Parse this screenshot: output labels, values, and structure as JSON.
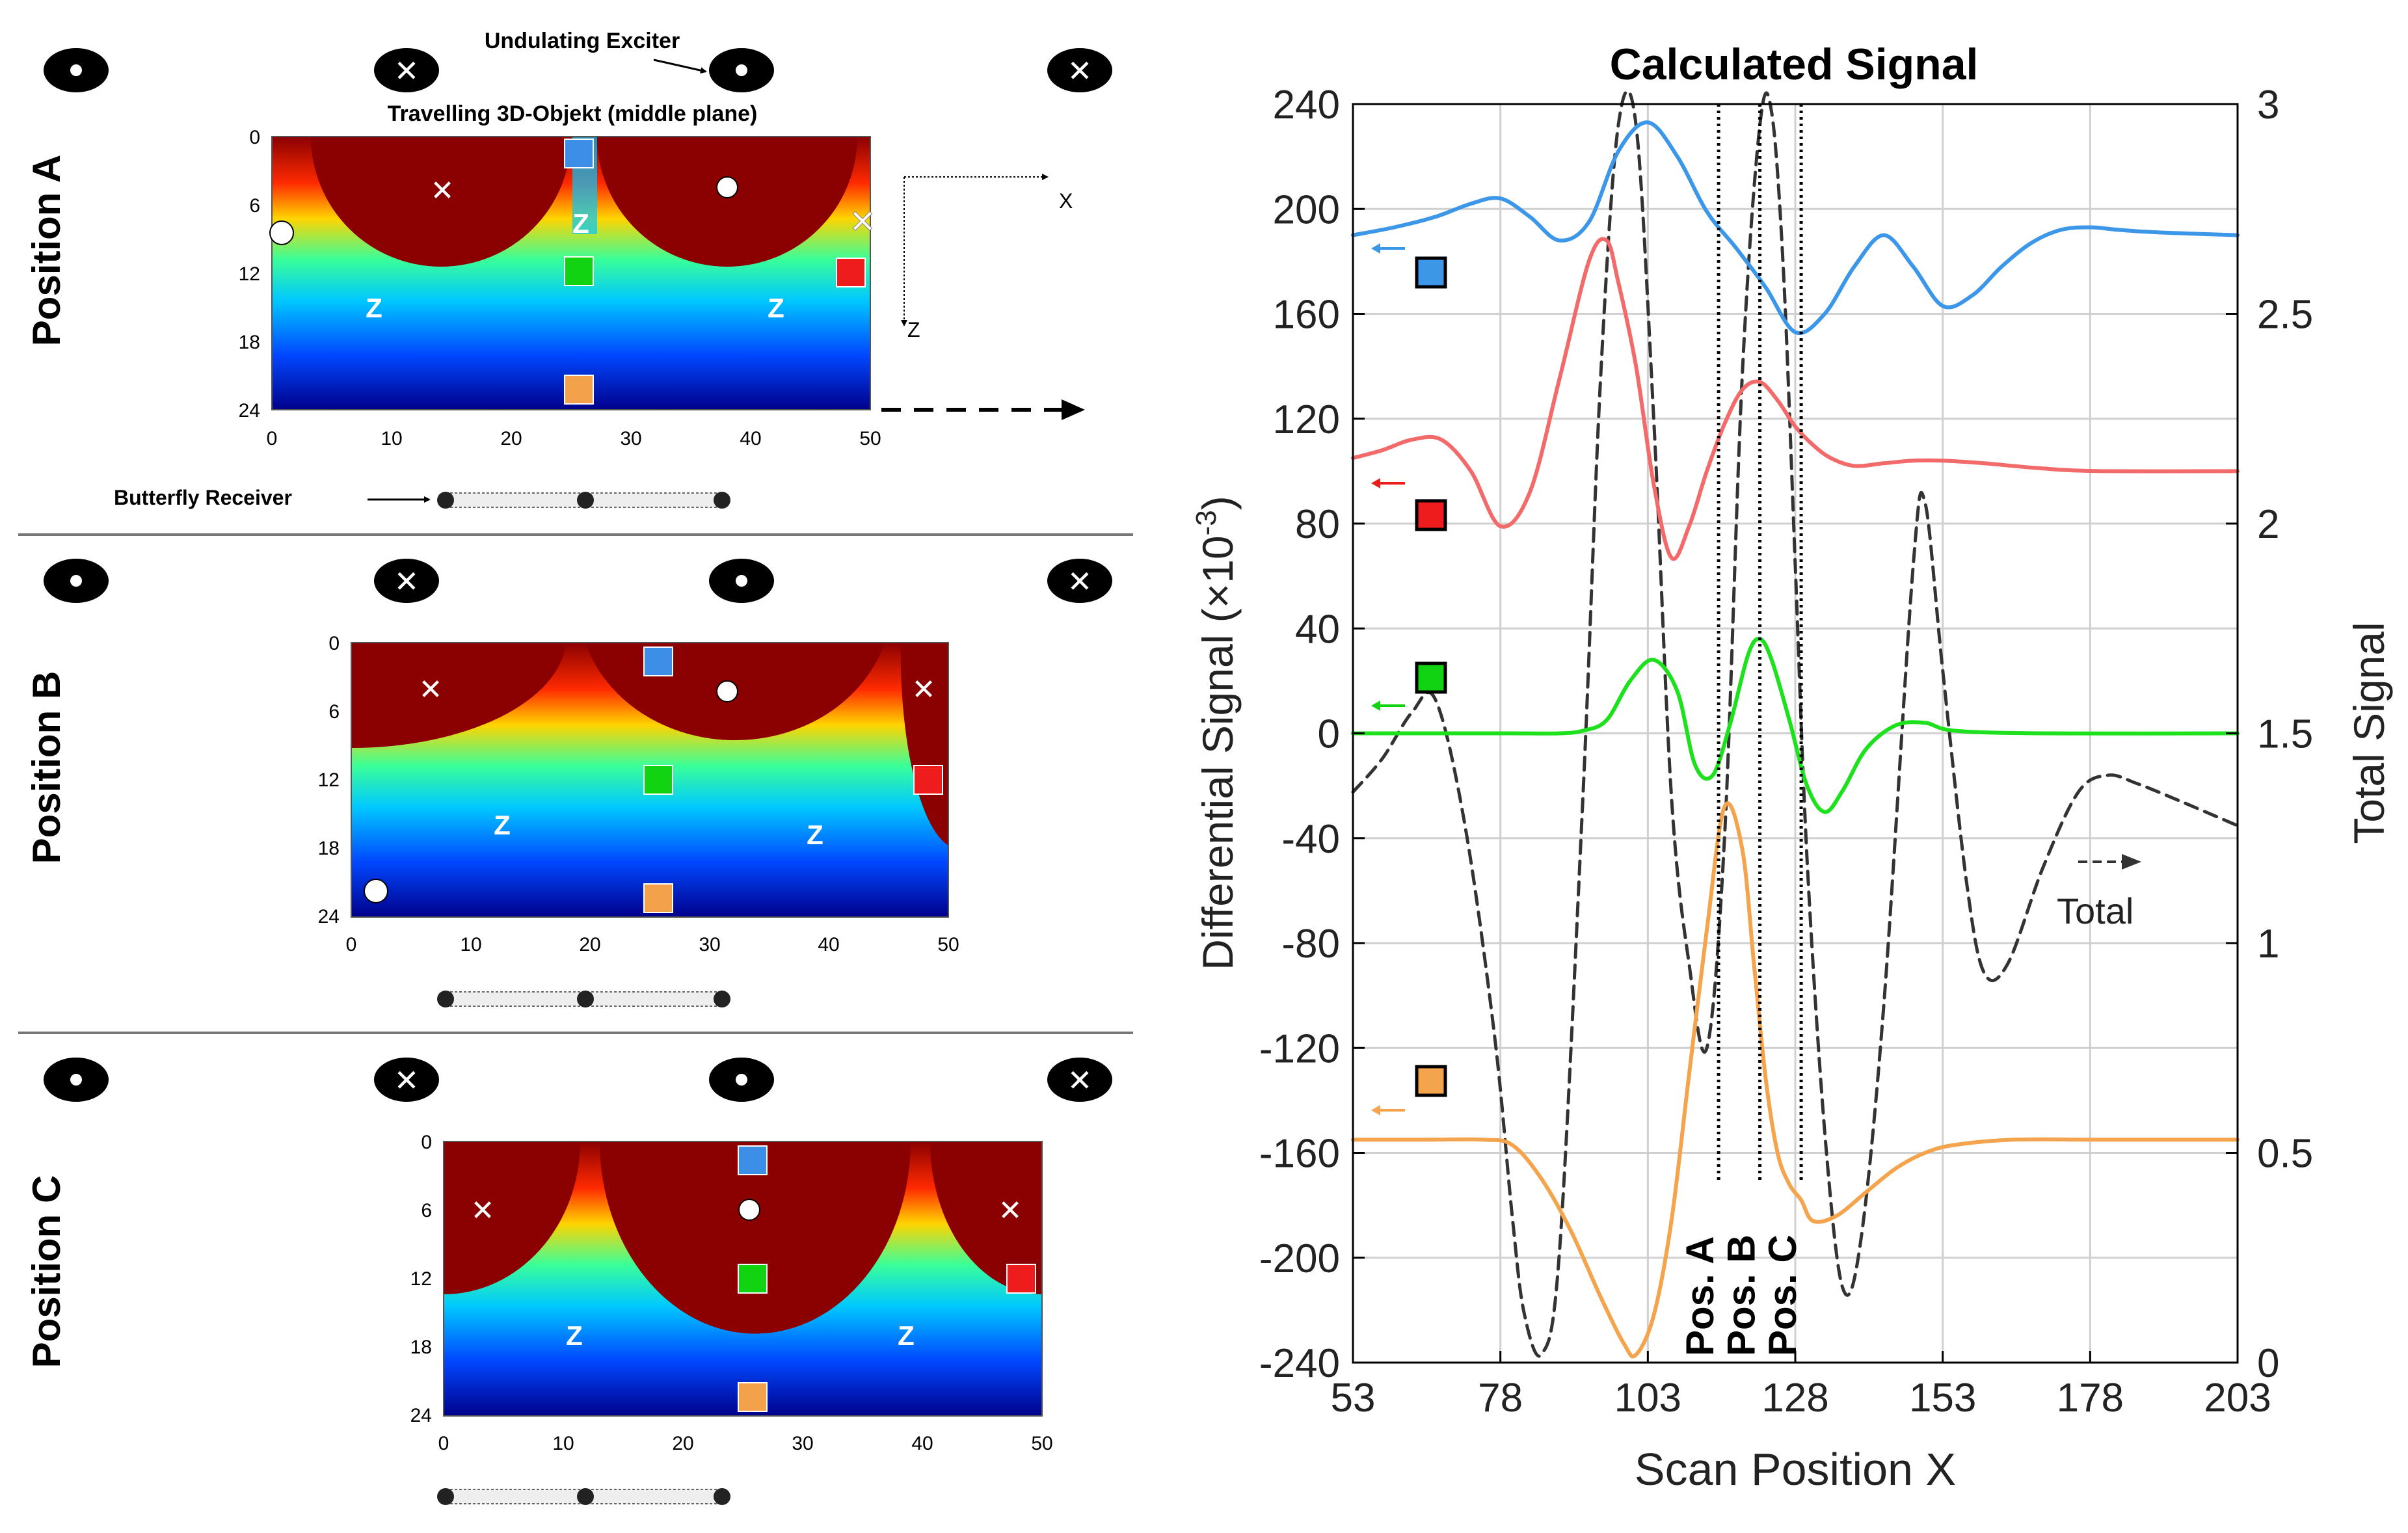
{
  "left_panel": {
    "exciter_label": "Undulating Exciter",
    "object_label": "Travelling 3D-Objekt (middle plane)",
    "receiver_label": "Butterfly Receiver",
    "axis_x_label": "X",
    "axis_z_label": "Z",
    "zone_label": "Z",
    "x_ticks": [
      "0",
      "10",
      "20",
      "30",
      "40",
      "50"
    ],
    "z_ticks": [
      "0",
      "6",
      "12",
      "18",
      "24"
    ],
    "colormap": [
      "#8b0000",
      "#ff2a00",
      "#ffd400",
      "#39ff9a",
      "#00c8ff",
      "#0047ff",
      "#00008b"
    ],
    "marker_colors": {
      "blue": "#3d8ee6",
      "green": "#12d312",
      "red": "#ee1c1c",
      "orange": "#f4a14b"
    },
    "panels": [
      {
        "label": "Position A"
      },
      {
        "label": "Position B"
      },
      {
        "label": "Position C"
      }
    ]
  },
  "chart_data": {
    "type": "line",
    "title": "Calculated Signal",
    "xlabel": "Scan Position X",
    "ylabel_left": "Differential Signal (×10",
    "ylabel_left_exp": "-3",
    "ylabel_left_close": ")",
    "ylabel_right": "Total Signal",
    "xlim": [
      53,
      203
    ],
    "ylim_left": [
      -240,
      240
    ],
    "ylim_right": [
      0,
      3
    ],
    "x_ticks": [
      "53",
      "78",
      "103",
      "128",
      "153",
      "178",
      "203"
    ],
    "y_left_ticks": [
      "240",
      "200",
      "160",
      "120",
      "80",
      "40",
      "0",
      "-40",
      "-80",
      "-120",
      "-160",
      "-200",
      "-240"
    ],
    "y_right_ticks": [
      "3",
      "2.5",
      "2",
      "1.5",
      "1",
      "0.5",
      "0"
    ],
    "grid": true,
    "vlines": [
      {
        "x": 115,
        "label": "Pos. A"
      },
      {
        "x": 122,
        "label": "Pos. B"
      },
      {
        "x": 129,
        "label": "Pos. C"
      }
    ],
    "total_annotation": "Total",
    "series": [
      {
        "name": "blue",
        "color": "#3d97e8",
        "axis": "left",
        "x": [
          53,
          60,
          67,
          73,
          78,
          83,
          88,
          93,
          98,
          103,
          108,
          113,
          118,
          123,
          128,
          133,
          138,
          143,
          148,
          153,
          158,
          163,
          168,
          173,
          178,
          183,
          190,
          203
        ],
        "y": [
          190,
          193,
          197,
          202,
          204,
          197,
          188,
          195,
          222,
          233,
          220,
          199,
          185,
          170,
          153,
          160,
          178,
          190,
          178,
          163,
          167,
          178,
          187,
          192,
          193,
          192,
          191,
          190
        ]
      },
      {
        "name": "red",
        "color": "#f26a6a",
        "axis": "left",
        "x": [
          53,
          58,
          63,
          68,
          73,
          78,
          83,
          88,
          93,
          96,
          98,
          101,
          104,
          107,
          110,
          113,
          116,
          119,
          122,
          125,
          128,
          131,
          134,
          138,
          143,
          148,
          153,
          160,
          170,
          180,
          203
        ],
        "y": [
          105,
          108,
          112,
          112,
          100,
          79,
          92,
          135,
          180,
          188,
          172,
          140,
          95,
          67,
          79,
          100,
          118,
          131,
          134,
          127,
          117,
          110,
          105,
          102,
          103,
          104,
          104,
          103,
          101,
          100,
          100
        ]
      },
      {
        "name": "green",
        "color": "#1ee11e",
        "axis": "left",
        "x": [
          53,
          70,
          80,
          88,
          92,
          96,
          100,
          104,
          108,
          111,
          114,
          117,
          120,
          122,
          124,
          127,
          130,
          133,
          136,
          140,
          145,
          150,
          155,
          170,
          203
        ],
        "y": [
          0,
          0,
          0,
          0,
          1,
          5,
          20,
          28,
          16,
          -12,
          -16,
          4,
          30,
          36,
          28,
          5,
          -20,
          -30,
          -22,
          -6,
          3,
          4,
          1,
          0,
          0
        ]
      },
      {
        "name": "orange",
        "color": "#f5a44e",
        "axis": "left",
        "x": [
          53,
          65,
          75,
          80,
          85,
          90,
          95,
          99,
          101,
          104,
          107,
          110,
          113,
          116,
          119,
          121,
          123,
          125,
          127,
          129,
          131,
          135,
          140,
          145,
          150,
          155,
          165,
          180,
          203
        ],
        "y": [
          -155,
          -155,
          -155,
          -157,
          -170,
          -190,
          -215,
          -233,
          -237,
          -222,
          -186,
          -130,
          -75,
          -28,
          -44,
          -88,
          -132,
          -160,
          -172,
          -178,
          -186,
          -184,
          -175,
          -166,
          -160,
          -157,
          -155,
          -155,
          -155
        ]
      },
      {
        "name": "Total",
        "color": "#333333",
        "axis": "right",
        "dashed": true,
        "x": [
          53,
          58,
          63,
          67,
          72,
          77,
          80,
          82,
          85,
          88,
          92,
          95,
          98,
          101,
          104,
          107,
          110,
          113,
          116,
          119,
          122,
          124,
          126,
          128,
          130,
          133,
          136,
          139,
          143,
          148,
          150,
          153,
          157,
          160,
          164,
          170,
          176,
          181,
          186,
          193,
          203
        ],
        "y": [
          1.36,
          1.44,
          1.55,
          1.58,
          1.28,
          0.78,
          0.35,
          0.12,
          0.02,
          0.26,
          1.35,
          2.35,
          2.95,
          2.95,
          2.25,
          1.35,
          0.95,
          0.75,
          1.25,
          2.35,
          2.95,
          2.98,
          2.6,
          1.9,
          1.2,
          0.55,
          0.18,
          0.28,
          0.85,
          1.9,
          2.05,
          1.65,
          1.15,
          0.93,
          0.95,
          1.18,
          1.36,
          1.4,
          1.38,
          1.34,
          1.28
        ]
      }
    ]
  }
}
